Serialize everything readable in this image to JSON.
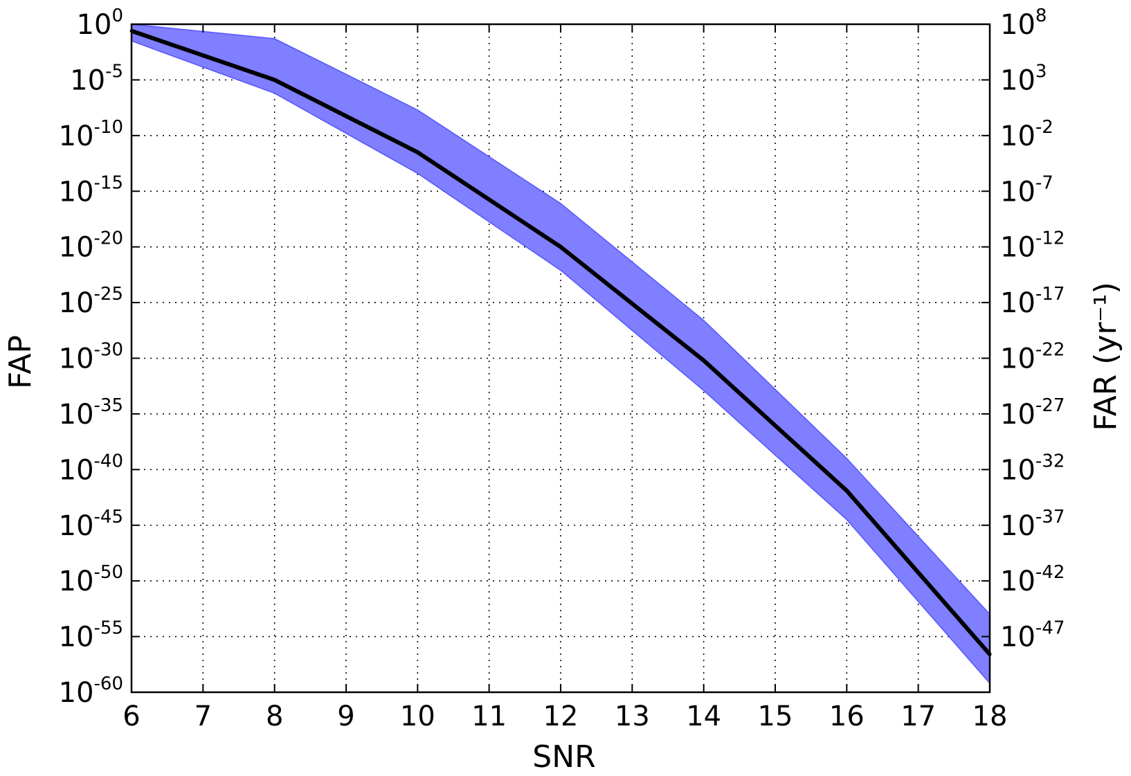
{
  "chart_data": {
    "type": "area",
    "title": "",
    "xlabel": "SNR",
    "ylabel": "FAP",
    "y2label": "FAR (yr⁻¹)",
    "xlim": [
      6,
      18
    ],
    "ylim_log10": [
      -60,
      0
    ],
    "y_scale": "log",
    "y2_scale": "log",
    "y2_log10_offset": 8,
    "grid": true,
    "x_ticks": [
      "6",
      "7",
      "8",
      "9",
      "10",
      "11",
      "12",
      "13",
      "14",
      "15",
      "16",
      "17",
      "18"
    ],
    "y_ticks": [
      {
        "base": "10",
        "exp": "0",
        "log10": 0
      },
      {
        "base": "10",
        "exp": "-5",
        "log10": -5
      },
      {
        "base": "10",
        "exp": "-10",
        "log10": -10
      },
      {
        "base": "10",
        "exp": "-15",
        "log10": -15
      },
      {
        "base": "10",
        "exp": "-20",
        "log10": -20
      },
      {
        "base": "10",
        "exp": "-25",
        "log10": -25
      },
      {
        "base": "10",
        "exp": "-30",
        "log10": -30
      },
      {
        "base": "10",
        "exp": "-35",
        "log10": -35
      },
      {
        "base": "10",
        "exp": "-40",
        "log10": -40
      },
      {
        "base": "10",
        "exp": "-45",
        "log10": -45
      },
      {
        "base": "10",
        "exp": "-50",
        "log10": -50
      },
      {
        "base": "10",
        "exp": "-55",
        "log10": -55
      },
      {
        "base": "10",
        "exp": "-60",
        "log10": -60
      }
    ],
    "y2_ticks": [
      {
        "base": "10",
        "exp": "8",
        "log10": 8
      },
      {
        "base": "10",
        "exp": "3",
        "log10": 3
      },
      {
        "base": "10",
        "exp": "-2",
        "log10": -2
      },
      {
        "base": "10",
        "exp": "-7",
        "log10": -7
      },
      {
        "base": "10",
        "exp": "-12",
        "log10": -12
      },
      {
        "base": "10",
        "exp": "-17",
        "log10": -17
      },
      {
        "base": "10",
        "exp": "-22",
        "log10": -22
      },
      {
        "base": "10",
        "exp": "-27",
        "log10": -27
      },
      {
        "base": "10",
        "exp": "-32",
        "log10": -32
      },
      {
        "base": "10",
        "exp": "-37",
        "log10": -37
      },
      {
        "base": "10",
        "exp": "-42",
        "log10": -42
      },
      {
        "base": "10",
        "exp": "-47",
        "log10": -47
      }
    ],
    "series": [
      {
        "role": "median",
        "color": "#000000",
        "x": [
          6,
          8,
          10,
          12,
          14,
          16,
          18
        ],
        "log10_y": [
          -0.6,
          -5.0,
          -11.5,
          -20.0,
          -30.2,
          -41.9,
          -56.6
        ]
      },
      {
        "role": "band",
        "color": "#7f7fff",
        "x": [
          6,
          8,
          10,
          12,
          14,
          16,
          18
        ],
        "log10_upper": [
          0.0,
          -1.3,
          -7.7,
          -16.1,
          -26.6,
          -39.0,
          -53.0
        ],
        "log10_lower": [
          -1.5,
          -6.2,
          -13.4,
          -22.1,
          -32.9,
          -44.5,
          -59.2
        ]
      }
    ]
  }
}
